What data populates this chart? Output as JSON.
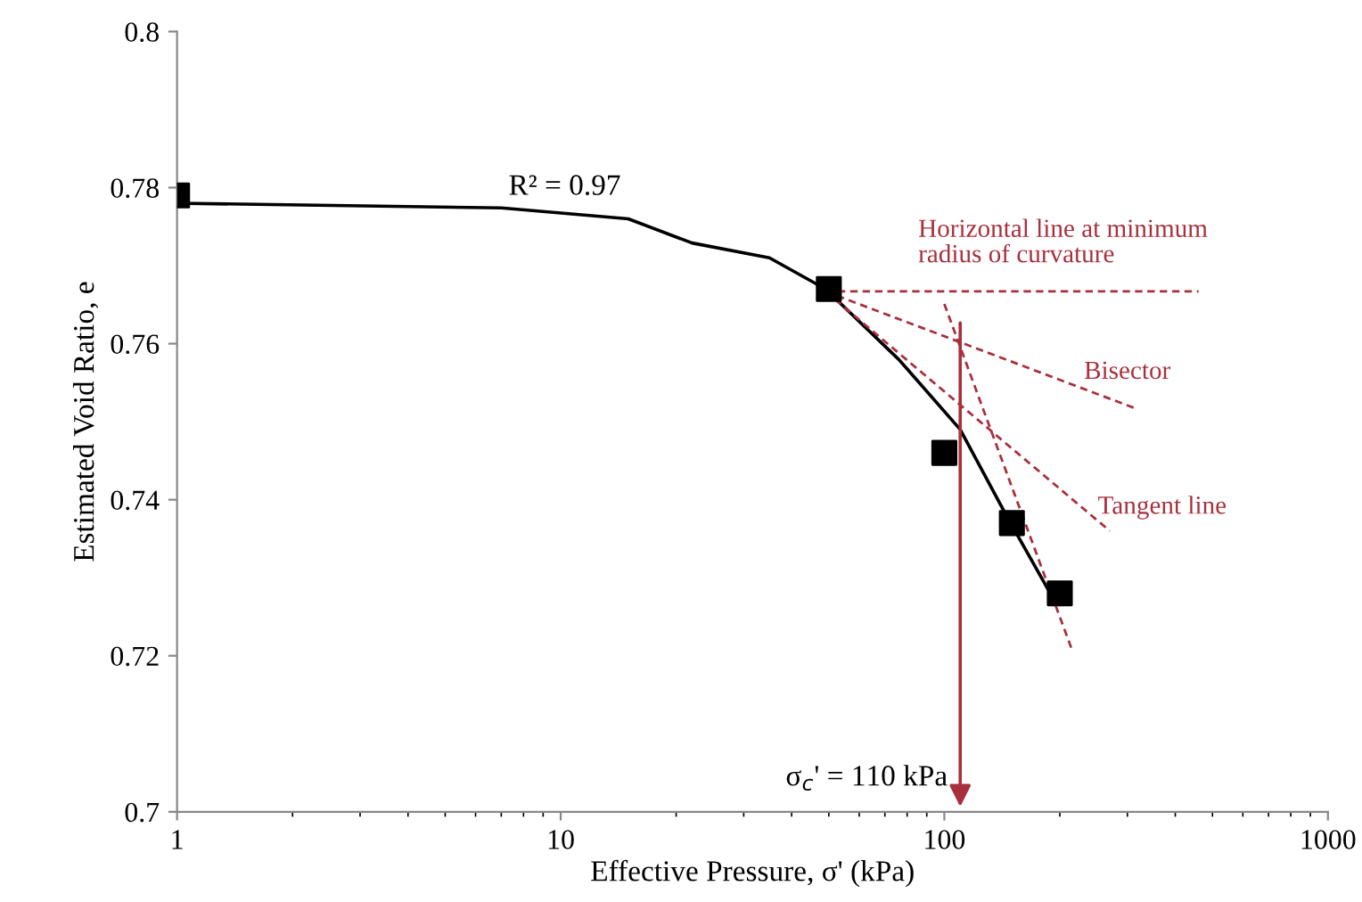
{
  "chart_data": {
    "type": "scatter",
    "xlabel": "Effective Pressure, σ' (kPa)",
    "ylabel": "Estimated Void Ratio, e",
    "log": "x",
    "xlim": [
      1,
      1000
    ],
    "xticks": [
      1,
      10,
      100,
      1000
    ],
    "ylim": [
      0.7,
      0.8
    ],
    "yticks": [
      0.7,
      0.72,
      0.74,
      0.76,
      0.78,
      0.8
    ],
    "series": [
      {
        "color": "#000000",
        "marker": "square",
        "x": [
          1,
          50,
          100,
          150,
          200
        ],
        "values": [
          0.779,
          0.767,
          0.746,
          0.737,
          0.728
        ]
      },
      {
        "type": "line",
        "color": "#000000",
        "line_style": "solid",
        "x": [
          1,
          7,
          15,
          22,
          35,
          49,
          76,
          110,
          145,
          194
        ],
        "values": [
          0.778,
          0.7774,
          0.776,
          0.7729,
          0.771,
          0.767,
          0.758,
          0.749,
          0.738,
          0.727
        ]
      },
      {
        "type": "line",
        "color": "#a8303c",
        "line_style": "dashed",
        "x": [
          49,
          460
        ],
        "values": [
          0.7667,
          0.7667
        ]
      },
      {
        "type": "line",
        "color": "#a8303c",
        "line_style": "dashed",
        "x": [
          49,
          315
        ],
        "values": [
          0.7667,
          0.7517
        ]
      },
      {
        "type": "line",
        "color": "#a8303c",
        "line_style": "dashed",
        "x": [
          49,
          270
        ],
        "values": [
          0.7667,
          0.736
        ]
      },
      {
        "type": "line",
        "color": "#a8303c",
        "line_style": "dashed",
        "x": [
          100,
          215
        ],
        "values": [
          0.7651,
          0.7208
        ]
      }
    ],
    "annotations": [
      "R² = 0.97",
      "Horizontal line at minimum\nradius of curvature",
      "Bisector",
      "Tangent line",
      {
        "text": "σ$_{c}$' = 110 kPa",
        "x": 110,
        "y": 0.7633
      }
    ]
  }
}
